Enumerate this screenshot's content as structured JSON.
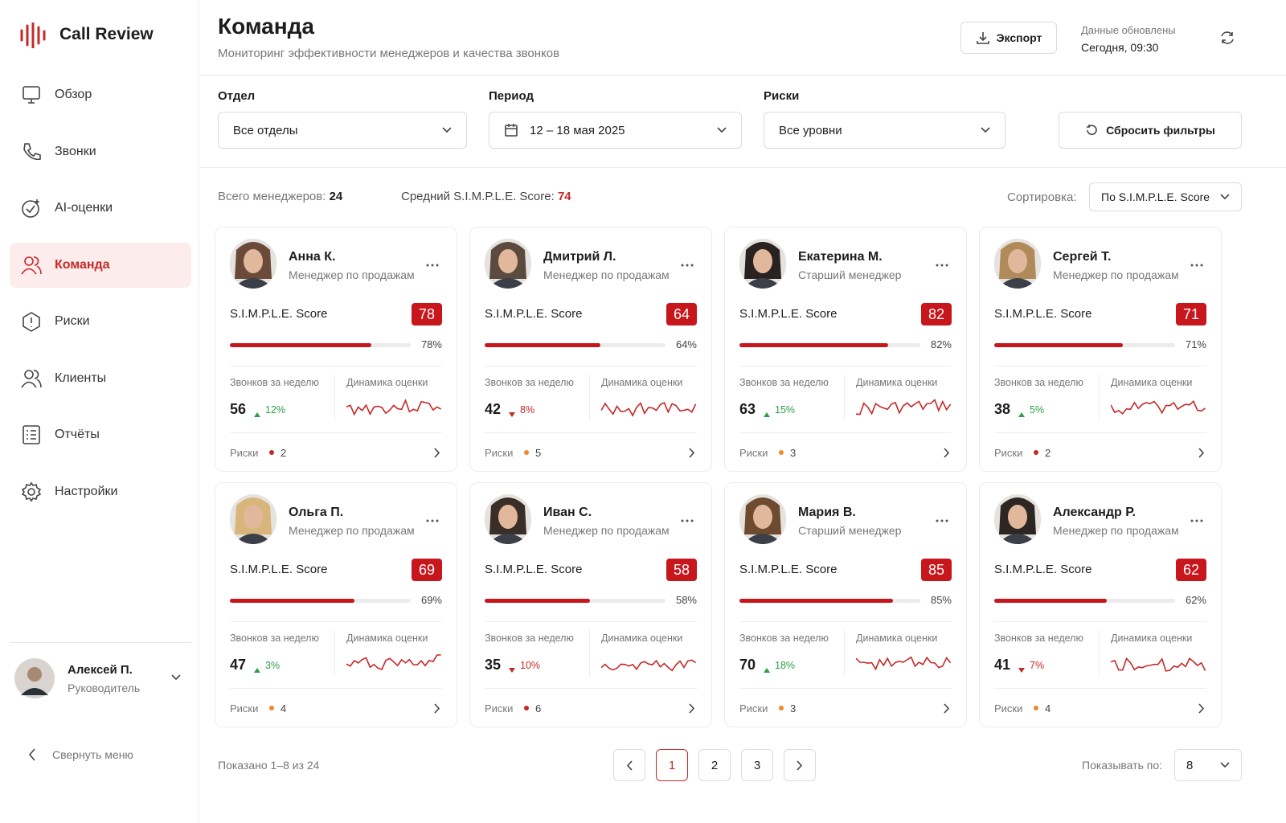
{
  "sidebar": {
    "brand": "Call Review",
    "nav": [
      {
        "label": "Обзор",
        "active": false
      },
      {
        "label": "Звонки",
        "active": false
      },
      {
        "label": "AI-оценки",
        "active": false
      },
      {
        "label": "Команда",
        "active": true
      },
      {
        "label": "Риски",
        "active": false
      },
      {
        "label": "Клиенты",
        "active": false
      },
      {
        "label": "Отчёты",
        "active": false
      },
      {
        "label": "Настройки",
        "active": false
      }
    ],
    "user": {
      "name": "Алексей П.",
      "role": "Руководитель"
    },
    "collapse": "Свернуть меню"
  },
  "header": {
    "title": "Команда",
    "subtitle": "Мониторинг эффективности менеджеров и качества звонков",
    "export": "Экспорт",
    "updated_label": "Данные обновлены",
    "updated_value": "Сегодня, 09:30"
  },
  "filters": [
    {
      "label": "Отдел",
      "value": "Все отделы"
    },
    {
      "label": "Период",
      "value": "12 – 18 мая 2025"
    },
    {
      "label": "Риски",
      "value": "Все уровни"
    }
  ],
  "reset": "Сбросить фильтры",
  "summary": {
    "total_label": "Всего менеджеров:",
    "total": 24,
    "avg_label": "Средний S.I.M.P.L.E. Score:",
    "avg": 74,
    "sort_label": "Сортировка:",
    "sort_value": "По S.I.M.P.L.E. Score"
  },
  "card_labels": {
    "score": "S.I.M.P.L.E. Score",
    "calls": "Звонков за неделю",
    "dynamics": "Динамика оценки",
    "risks": "Риски"
  },
  "managers": [
    {
      "name": "Анна К.",
      "role": "Менеджер по продажам",
      "score": 78,
      "score_label": "78%",
      "calls": 56,
      "calls_change": "12%",
      "trend": "up",
      "risks": 2,
      "risk_color": "#c62828"
    },
    {
      "name": "Дмитрий Л.",
      "role": "Менеджер по продажам",
      "score": 64,
      "score_label": "64%",
      "calls": 42,
      "calls_change": "8%",
      "trend": "down",
      "risks": 5,
      "risk_color": "#ef8a2a"
    },
    {
      "name": "Екатерина М.",
      "role": "Старший менеджер",
      "score": 82,
      "score_label": "82%",
      "calls": 63,
      "calls_change": "15%",
      "trend": "up",
      "risks": 3,
      "risk_color": "#ef8a2a"
    },
    {
      "name": "Сергей Т.",
      "role": "Менеджер по продажам",
      "score": 71,
      "score_label": "71%",
      "calls": 38,
      "calls_change": "5%",
      "trend": "up",
      "risks": 2,
      "risk_color": "#c62828"
    },
    {
      "name": "Ольга П.",
      "role": "Менеджер по продажам",
      "score": 69,
      "score_label": "69%",
      "calls": 47,
      "calls_change": "3%",
      "trend": "up",
      "risks": 4,
      "risk_color": "#ef8a2a"
    },
    {
      "name": "Иван С.",
      "role": "Менеджер по продажам",
      "score": 58,
      "score_label": "58%",
      "calls": 35,
      "calls_change": "10%",
      "trend": "down",
      "risks": 6,
      "risk_color": "#c62828"
    },
    {
      "name": "Мария В.",
      "role": "Старший менеджер",
      "score": 85,
      "score_label": "85%",
      "calls": 70,
      "calls_change": "18%",
      "trend": "up",
      "risks": 3,
      "risk_color": "#ef8a2a"
    },
    {
      "name": "Александр Р.",
      "role": "Менеджер по продажам",
      "score": 62,
      "score_label": "62%",
      "calls": 41,
      "calls_change": "7%",
      "trend": "down",
      "risks": 4,
      "risk_color": "#ef8a2a"
    }
  ],
  "pagination": {
    "shown": "Показано 1–8 из 24",
    "pages": [
      1,
      2,
      3
    ],
    "current": 1,
    "per_page_label": "Показывать по:",
    "per_page": 8
  }
}
